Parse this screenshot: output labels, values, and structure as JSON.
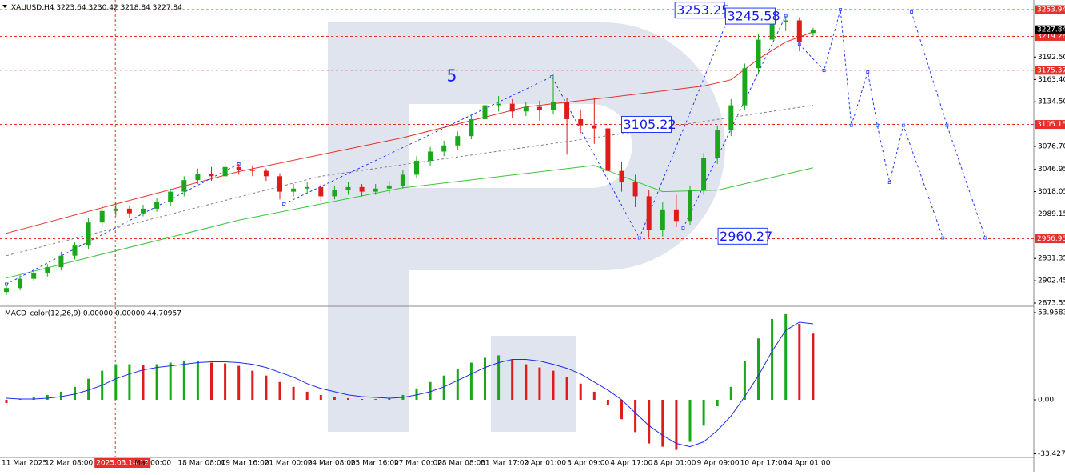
{
  "chart_data": {
    "type": "candlestick",
    "symbol": "XAUUSD,H4",
    "ylim": [
      2870.44,
      3262.23
    ],
    "yticks": [
      {
        "value": 3192.5,
        "label": "3192.50"
      },
      {
        "value": 3163.4,
        "label": "3163.40"
      },
      {
        "value": 3134.5,
        "label": "3134.50"
      },
      {
        "value": 3076.7,
        "label": "3076.70"
      },
      3046.95,
      3018.05,
      2989.15,
      2931.35,
      2902.45,
      2873.55
    ],
    "levels": [
      3253.94,
      3219.26,
      3175.37,
      3105.15,
      2956.95
    ],
    "level_color": "#e8302a",
    "up_color": "#1aa81a",
    "down_color": "#e01b1b",
    "categories": [
      "11 Mar 2025",
      "12 Mar 08:00",
      "2025.03.14 12:00",
      "Mar 00:00",
      "18 Mar 08:00",
      "19 Mar 16:00",
      "21 Mar 00:00",
      "24 Mar 08:00",
      "25 Mar 16:00",
      "27 Mar 00:00",
      "28 Mar 08:00",
      "31 Mar 17:00",
      "2 Apr 01:00",
      "3 Apr 09:00",
      "4 Apr 17:00",
      "8 Apr 01:00",
      "9 Apr 09:00",
      "10 Apr 17:00",
      "14 Apr 01:00"
    ],
    "highlight_category": 2,
    "candles": [
      [
        2888,
        2898,
        2884,
        2893
      ],
      [
        2893,
        2910,
        2890,
        2905
      ],
      [
        2905,
        2918,
        2902,
        2913
      ],
      [
        2913,
        2924,
        2908,
        2920
      ],
      [
        2920,
        2940,
        2916,
        2935
      ],
      [
        2935,
        2952,
        2930,
        2948
      ],
      [
        2948,
        2984,
        2944,
        2978
      ],
      [
        2978,
        3000,
        2974,
        2993
      ],
      [
        2993,
        3004,
        2986,
        2996
      ],
      [
        2996,
        3000,
        2984,
        2990
      ],
      [
        2990,
        3001,
        2986,
        2996
      ],
      [
        2996,
        3010,
        2992,
        3005
      ],
      [
        3005,
        3022,
        3000,
        3018
      ],
      [
        3018,
        3038,
        3012,
        3033
      ],
      [
        3033,
        3048,
        3028,
        3041
      ],
      [
        3041,
        3050,
        3032,
        3038
      ],
      [
        3038,
        3056,
        3034,
        3050
      ],
      [
        3050,
        3054,
        3040,
        3046
      ],
      [
        3046,
        3052,
        3038,
        3045
      ],
      [
        3045,
        3048,
        3032,
        3038
      ],
      [
        3038,
        3042,
        3008,
        3018
      ],
      [
        3018,
        3028,
        3012,
        3022
      ],
      [
        3022,
        3030,
        3016,
        3024
      ],
      [
        3024,
        3028,
        3004,
        3012
      ],
      [
        3012,
        3026,
        3008,
        3020
      ],
      [
        3020,
        3030,
        3014,
        3024
      ],
      [
        3024,
        3028,
        3012,
        3018
      ],
      [
        3018,
        3028,
        3014,
        3022
      ],
      [
        3022,
        3032,
        3016,
        3026
      ],
      [
        3026,
        3046,
        3022,
        3040
      ],
      [
        3040,
        3064,
        3036,
        3058
      ],
      [
        3058,
        3076,
        3052,
        3070
      ],
      [
        3070,
        3084,
        3064,
        3078
      ],
      [
        3078,
        3096,
        3072,
        3090
      ],
      [
        3090,
        3118,
        3086,
        3112
      ],
      [
        3112,
        3136,
        3106,
        3130
      ],
      [
        3130,
        3142,
        3122,
        3132
      ],
      [
        3132,
        3138,
        3114,
        3122
      ],
      [
        3122,
        3134,
        3116,
        3128
      ],
      [
        3128,
        3136,
        3110,
        3124
      ],
      [
        3124,
        3170,
        3118,
        3134
      ],
      [
        3134,
        3140,
        3066,
        3112
      ],
      [
        3112,
        3124,
        3094,
        3104
      ],
      [
        3104,
        3140,
        3080,
        3100
      ],
      [
        3100,
        3106,
        3036,
        3045
      ],
      [
        3045,
        3056,
        3018,
        3030
      ],
      [
        3030,
        3040,
        2998,
        3012
      ],
      [
        3012,
        3020,
        2958,
        2968
      ],
      [
        2968,
        3004,
        2960,
        2995
      ],
      [
        2995,
        3014,
        2972,
        2980
      ],
      [
        2980,
        3026,
        2975,
        3020
      ],
      [
        3020,
        3068,
        3014,
        3062
      ],
      [
        3062,
        3104,
        3054,
        3098
      ],
      [
        3098,
        3138,
        3090,
        3130
      ],
      [
        3130,
        3184,
        3124,
        3178
      ],
      [
        3178,
        3222,
        3170,
        3215
      ],
      [
        3215,
        3245,
        3206,
        3238
      ],
      [
        3238,
        3246,
        3226,
        3240
      ],
      [
        3240,
        3244,
        3200,
        3212
      ],
      [
        3223.64,
        3230.42,
        3218.84,
        3227.84
      ]
    ],
    "lines": [
      {
        "color": "#e8302a",
        "dash": "none",
        "x": [
          0,
          8,
          17,
          29,
          38,
          44,
          51,
          53,
          55,
          57,
          59
        ],
        "values": [
          2964,
          3002,
          3044,
          3088,
          3128,
          3140,
          3155,
          3163,
          3190,
          3212,
          3225
        ]
      },
      {
        "color": "#3cc43c",
        "dash": "none",
        "x": [
          0,
          17,
          29,
          43,
          48,
          52,
          59
        ],
        "values": [
          2906,
          2981,
          3023,
          3052,
          3018,
          3020,
          3049
        ]
      },
      {
        "color": "#808080",
        "dash": "3 3",
        "x": [
          0,
          23,
          43,
          59
        ],
        "values": [
          2935,
          3038,
          3088,
          3130
        ]
      },
      {
        "color": "#2038ff",
        "dash": "3 3",
        "x": [
          0,
          17
        ],
        "values": [
          2898,
          3054
        ]
      },
      {
        "color": "#2038ff",
        "dash": "3 3",
        "x": [
          20.3,
          39.9,
          46.3,
          53
        ],
        "values": [
          3002,
          3167,
          2958,
          3252
        ]
      },
      {
        "color": "#2038ff",
        "dash": "3 3",
        "x": [
          49.5,
          57
        ],
        "values": [
          2971,
          3246
        ]
      },
      {
        "color": "#2038ff",
        "dash": "3 3",
        "x": [
          58,
          59.8,
          61,
          61.8,
          63,
          63.7,
          64.6,
          65.6,
          68.5
        ],
        "values": [
          3209,
          3175,
          3254,
          3104,
          3173,
          3104,
          3030,
          3104,
          2958
        ]
      },
      {
        "color": "#2038ff",
        "dash": "3 3",
        "x": [
          66.2,
          68.8,
          71.6
        ],
        "values": [
          3251,
          3104,
          2958
        ]
      }
    ],
    "annotations": [
      {
        "label": "3253.25",
        "x": 48.9,
        "y": 3253.25,
        "boxed": true
      },
      {
        "label": "3245.58",
        "x": 52.6,
        "y": 3245.58,
        "boxed": true
      },
      {
        "label": "3105.22",
        "x": 45,
        "y": 3105.22,
        "boxed": true
      },
      {
        "label": "2960.27",
        "x": 52.05,
        "y": 2960.27,
        "boxed": true
      },
      {
        "label": "5",
        "x": 32.2,
        "y": 3167,
        "boxed": false
      }
    ],
    "macd": {
      "title": "MACD_color(12,26,9) 0.00000 0.00000 44.70957",
      "ylim": [
        -42.08,
        57.42
      ],
      "yticks": [
        53.95838,
        {
          "value": 0,
          "label": "0.00"
        },
        -33.42724
      ],
      "signal_color": "#1a2cf0",
      "values": [
        -2,
        0.5,
        1.5,
        3,
        5,
        8,
        13,
        18,
        22,
        22,
        21.5,
        22,
        23,
        24,
        24,
        23,
        22.5,
        21,
        18,
        15,
        11,
        8,
        5,
        3,
        2,
        1,
        0.5,
        0.5,
        1,
        3,
        7,
        11,
        15,
        19,
        23,
        26,
        27.5,
        25,
        22,
        20,
        18,
        14,
        10,
        5,
        -3,
        -12,
        -20,
        -27,
        -29,
        -31,
        -26,
        -16,
        -4,
        8,
        24,
        38,
        50,
        53,
        47,
        41
      ],
      "signal": [
        1,
        0.5,
        0.5,
        1,
        2,
        3.5,
        6,
        9,
        13,
        16,
        18.5,
        20,
        21,
        22,
        23,
        23.5,
        23.5,
        23,
        22,
        20,
        17,
        14,
        10,
        7,
        5,
        3,
        2,
        1.5,
        1,
        1.5,
        3,
        5,
        8,
        12,
        16,
        20,
        23,
        25,
        25,
        24,
        22,
        19.5,
        16,
        11,
        6,
        0,
        -8,
        -16,
        -22,
        -27,
        -29,
        -26,
        -19,
        -10,
        2,
        15,
        30,
        43,
        48,
        47
      ]
    }
  }
}
